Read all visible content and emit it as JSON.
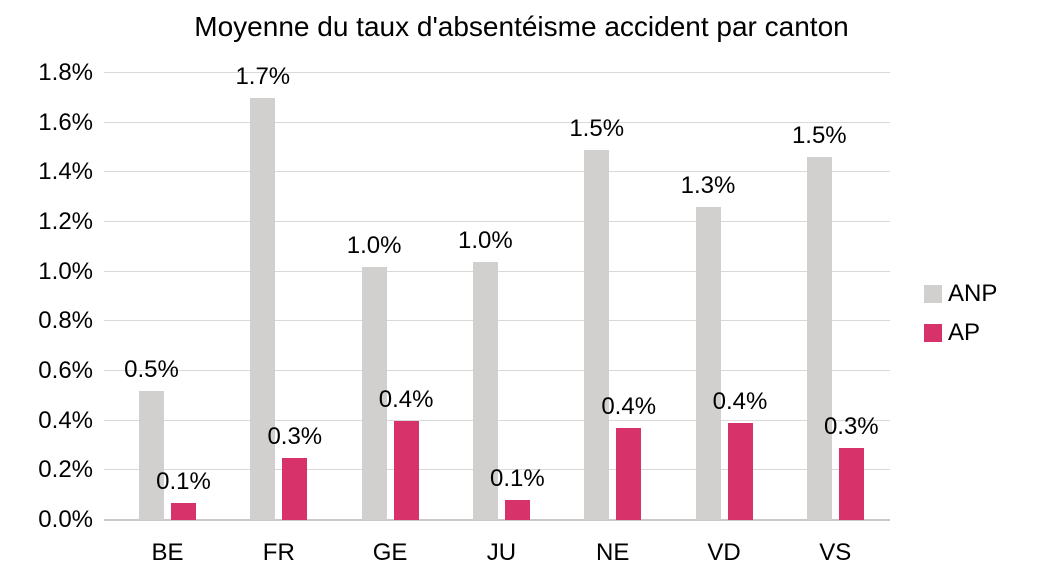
{
  "chart_data": {
    "type": "bar",
    "title": "Moyenne du taux d'absentéisme accident par canton",
    "categories": [
      "BE",
      "FR",
      "GE",
      "JU",
      "NE",
      "VD",
      "VS"
    ],
    "series": [
      {
        "name": "ANP",
        "color": "#D2CFCF",
        "values": [
          0.52,
          1.7,
          1.02,
          1.04,
          1.49,
          1.26,
          1.46
        ],
        "data_labels": [
          "0.5%",
          "1.7%",
          "1.0%",
          "1.0%",
          "1.5%",
          "1.3%",
          "1.5%"
        ]
      },
      {
        "name": "AP",
        "color": "#D8326B",
        "values": [
          0.07,
          0.25,
          0.4,
          0.08,
          0.37,
          0.39,
          0.29
        ],
        "data_labels": [
          "0.1%",
          "0.3%",
          "0.4%",
          "0.1%",
          "0.4%",
          "0.4%",
          "0.3%"
        ]
      }
    ],
    "y_axis": {
      "min": 0,
      "max": 1.8,
      "step": 0.2,
      "tick_labels": [
        "0.0%",
        "0.2%",
        "0.4%",
        "0.6%",
        "0.8%",
        "1.0%",
        "1.2%",
        "1.4%",
        "1.6%",
        "1.8%"
      ]
    },
    "xlabel": "",
    "ylabel": "",
    "grid": true,
    "legend": {
      "position": "right",
      "entries": [
        "ANP",
        "AP"
      ]
    },
    "style_colors": {
      "gridline": "#D9D9D9",
      "axis_line": "#C9C9C9",
      "text": "#000000",
      "background": "#FFFFFF"
    }
  }
}
